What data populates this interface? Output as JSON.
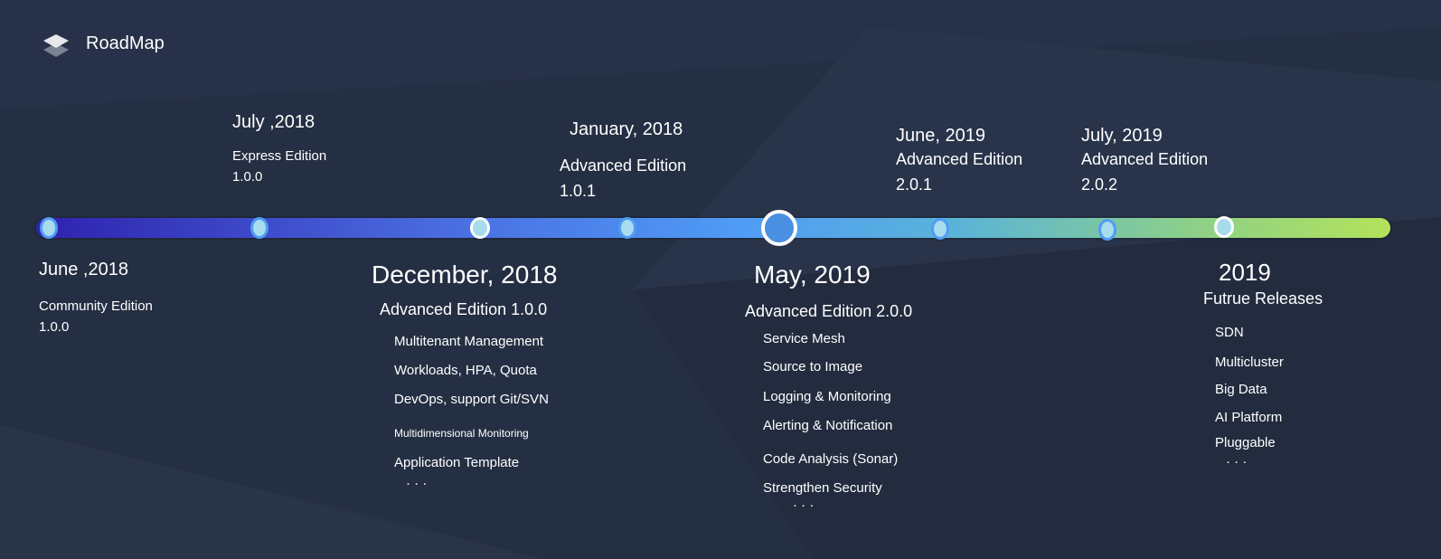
{
  "header": {
    "title": "RoadMap",
    "logo_icon": "layers-icon"
  },
  "colors": {
    "background": "#252f43",
    "bar_start": "#2e22ae",
    "bar_mid": "#4f9cf6",
    "bar_end": "#b3e35a"
  },
  "milestones": [
    {
      "date": "June ,2018",
      "edition": "Community Edition",
      "version": "1.0.0"
    },
    {
      "date": "July ,2018",
      "edition": "Express Edition",
      "version": "1.0.0"
    },
    {
      "date": "December, 2018",
      "edition": "Advanced Edition 1.0.0",
      "features": [
        "Multitenant Management",
        "Workloads, HPA, Quota",
        "DevOps, support Git/SVN",
        "Multidimensional Monitoring",
        "Application Template",
        "· · ·"
      ]
    },
    {
      "date": "January,  2018",
      "edition": "Advanced Edition",
      "version": "1.0.1"
    },
    {
      "date": "May, 2019",
      "edition": "Advanced Edition 2.0.0",
      "features": [
        "Service Mesh",
        "Source to Image",
        "Logging & Monitoring",
        "Alerting & Notification",
        "Code Analysis (Sonar)",
        "Strengthen Security",
        "· · ·"
      ]
    },
    {
      "date": "June, 2019",
      "edition": "Advanced Edition",
      "version": "2.0.1"
    },
    {
      "date": "July, 2019",
      "edition": "Advanced Edition",
      "version": "2.0.2"
    },
    {
      "date": "2019",
      "edition": "Futrue Releases",
      "features": [
        "SDN",
        "Multicluster",
        "Big Data",
        "AI Platform",
        "Pluggable",
        "· · ·"
      ]
    }
  ]
}
